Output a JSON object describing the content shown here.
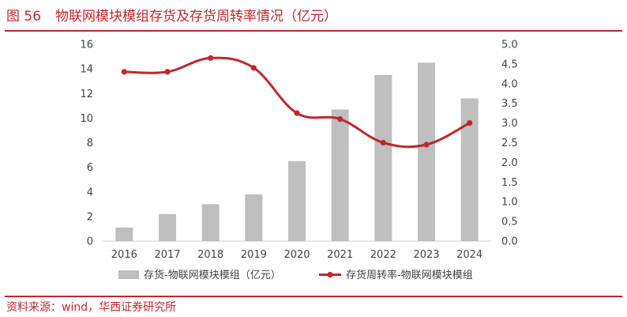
{
  "figure": {
    "number": "图 56",
    "title": "物联网模块模组存货及存货周转率情况（亿元）"
  },
  "source": "资料来源：wind，华西证券研究所",
  "colors": {
    "accent": "#c0272d",
    "bar": "#bfbfbf",
    "line": "#c0272d"
  },
  "chart_data": {
    "type": "bar",
    "categories": [
      "2016",
      "2017",
      "2018",
      "2019",
      "2020",
      "2021",
      "2022",
      "2023",
      "2024"
    ],
    "series": [
      {
        "name": "存货-物联网模块模组（亿元）",
        "type": "bar",
        "axis": "left",
        "values": [
          1.1,
          2.2,
          3.0,
          3.8,
          6.5,
          10.7,
          13.5,
          14.5,
          11.6
        ]
      },
      {
        "name": "存货周转率-物联网模块模组",
        "type": "line",
        "axis": "right",
        "smooth": true,
        "values": [
          4.3,
          4.3,
          4.65,
          4.4,
          3.25,
          3.1,
          2.5,
          2.45,
          3.0
        ]
      }
    ],
    "y_left": {
      "min": 0,
      "max": 16,
      "ticks": [
        "0",
        "2",
        "4",
        "6",
        "8",
        "10",
        "12",
        "14",
        "16"
      ]
    },
    "y_right": {
      "min": 0,
      "max": 5,
      "ticks": [
        "0.0",
        "0.5",
        "1.0",
        "1.5",
        "2.0",
        "2.5",
        "3.0",
        "3.5",
        "4.0",
        "4.5",
        "5.0"
      ]
    },
    "grid": false,
    "legend": "bottom"
  }
}
